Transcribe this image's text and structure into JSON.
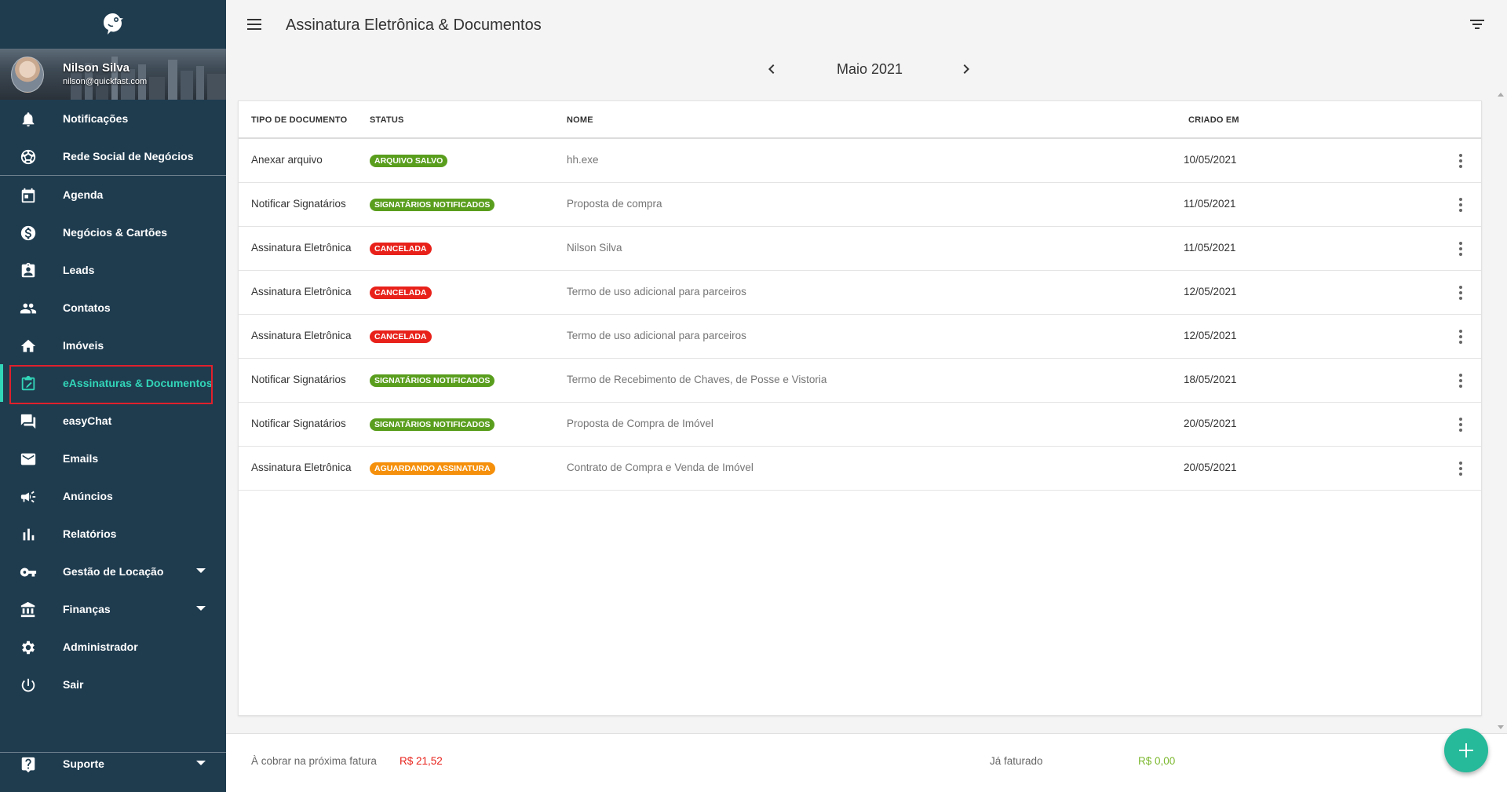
{
  "colors": {
    "sidebar_bg": "#1f3c4f",
    "accent": "#32d5b8",
    "green_badge": "#5a9e1e",
    "red_badge": "#e8221b",
    "orange_badge": "#f5900c",
    "red_value": "#e8221b",
    "green_value": "#7cb82f",
    "fab": "#26b99a"
  },
  "user": {
    "name": "Nilson Silva",
    "email": "nilson@quickfast.com"
  },
  "sidebar": {
    "items": [
      {
        "label": "Notificações",
        "icon": "bell-icon"
      },
      {
        "label": "Rede Social de Negócios",
        "icon": "soccer-ball-icon"
      },
      {
        "label": "Agenda",
        "icon": "calendar-icon"
      },
      {
        "label": "Negócios & Cartões",
        "icon": "dollar-circle-icon"
      },
      {
        "label": "Leads",
        "icon": "clipboard-account-icon"
      },
      {
        "label": "Contatos",
        "icon": "people-icon"
      },
      {
        "label": "Imóveis",
        "icon": "home-icon"
      },
      {
        "label": "eAssinaturas & Documentos",
        "icon": "signature-icon"
      },
      {
        "label": "easyChat",
        "icon": "chat-icon"
      },
      {
        "label": "Emails",
        "icon": "mail-icon"
      },
      {
        "label": "Anúncios",
        "icon": "megaphone-icon"
      },
      {
        "label": "Relatórios",
        "icon": "bar-chart-icon"
      },
      {
        "label": "Gestão de Locação",
        "icon": "key-icon"
      },
      {
        "label": "Finanças",
        "icon": "bank-icon"
      },
      {
        "label": "Administrador",
        "icon": "gear-icon"
      },
      {
        "label": "Sair",
        "icon": "power-icon"
      }
    ],
    "support_label": "Suporte"
  },
  "header": {
    "title": "Assinatura Eletrônica & Documentos"
  },
  "month_nav": {
    "label": "Maio 2021"
  },
  "table": {
    "headers": [
      "TIPO DE DOCUMENTO",
      "STATUS",
      "NOME",
      "CRIADO EM"
    ],
    "rows": [
      {
        "tipo": "Anexar arquivo",
        "status": "ARQUIVO SALVO",
        "status_color": "green",
        "nome": "hh.exe",
        "data": "10/05/2021"
      },
      {
        "tipo": "Notificar Signatários",
        "status": "SIGNATÁRIOS NOTIFICADOS",
        "status_color": "green",
        "nome": "Proposta de compra",
        "data": "11/05/2021"
      },
      {
        "tipo": "Assinatura Eletrônica",
        "status": "CANCELADA",
        "status_color": "red",
        "nome": "Nilson Silva",
        "data": "11/05/2021"
      },
      {
        "tipo": "Assinatura Eletrônica",
        "status": "CANCELADA",
        "status_color": "red",
        "nome": "Termo de uso adicional para parceiros",
        "data": "12/05/2021"
      },
      {
        "tipo": "Assinatura Eletrônica",
        "status": "CANCELADA",
        "status_color": "red",
        "nome": "Termo de uso adicional para parceiros",
        "data": "12/05/2021"
      },
      {
        "tipo": "Notificar Signatários",
        "status": "SIGNATÁRIOS NOTIFICADOS",
        "status_color": "green",
        "nome": "Termo de Recebimento de Chaves, de Posse e Vistoria",
        "data": "18/05/2021"
      },
      {
        "tipo": "Notificar Signatários",
        "status": "SIGNATÁRIOS NOTIFICADOS",
        "status_color": "green",
        "nome": "Proposta de Compra de Imóvel",
        "data": "20/05/2021"
      },
      {
        "tipo": "Assinatura Eletrônica",
        "status": "AGUARDANDO ASSINATURA",
        "status_color": "orange",
        "nome": "Contrato de Compra e Venda de Imóvel",
        "data": "20/05/2021"
      }
    ]
  },
  "footer": {
    "pending_label": "À cobrar na próxima fatura",
    "pending_value": "R$ 21,52",
    "billed_label": "Já faturado",
    "billed_value": "R$ 0,00"
  }
}
